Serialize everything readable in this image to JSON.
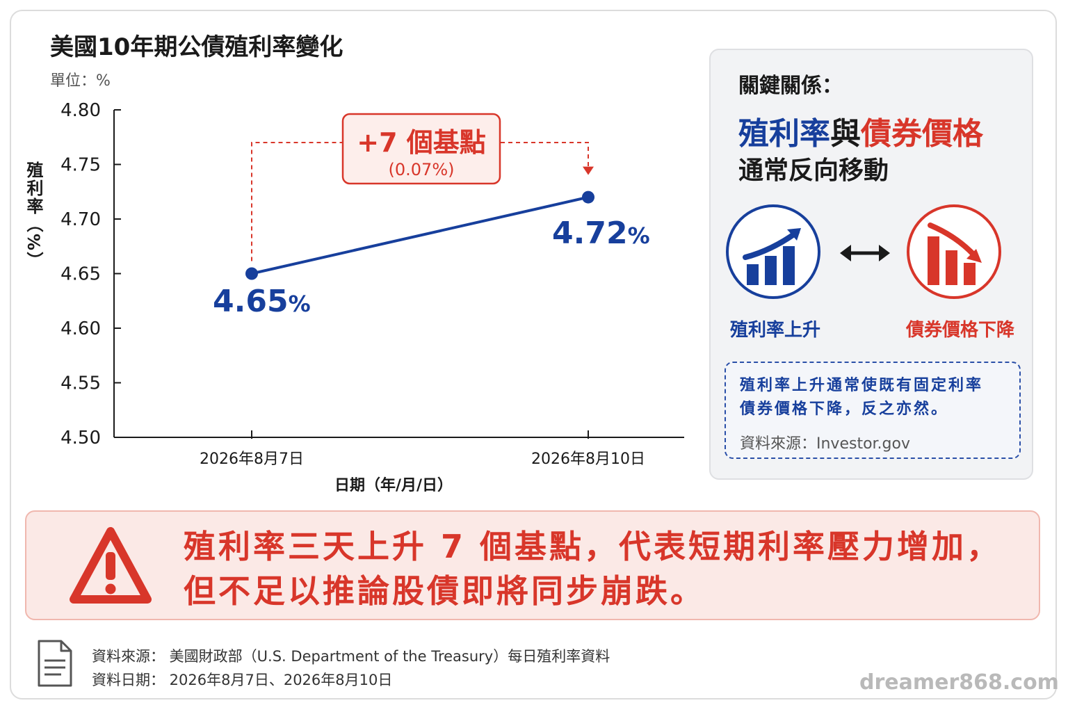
{
  "title": "美國10年期公債殖利率變化",
  "unit_label": "單位：%",
  "chart_data": {
    "type": "line",
    "categories": [
      "2026年8月7日",
      "2026年8月10日"
    ],
    "series": [
      {
        "values": [
          4.65,
          4.72
        ]
      }
    ],
    "ylim": [
      4.5,
      4.8
    ],
    "yticks": [
      "4.80",
      "4.75",
      "4.70",
      "4.65",
      "4.60",
      "4.55",
      "4.50"
    ],
    "xlabel": "日期（年/月/日）",
    "ylabel": "殖利率（%）",
    "point_labels": [
      "4.65",
      "4.72"
    ],
    "point_label_unit": "%",
    "annotation": {
      "main": "+7 個基點",
      "sub": "(0.07%)"
    },
    "colors": {
      "line": "#173f9c",
      "annotation": "#d8362a",
      "axis": "#1a1a1a"
    }
  },
  "panel": {
    "heading": "關鍵關係：",
    "line1_a": "殖利率",
    "line1_b": "與",
    "line1_c": "債券價格",
    "line2": "通常反向移動",
    "icon_up": "bar-chart-up-icon",
    "icon_down": "bar-chart-down-icon",
    "caption_up": "殖利率上升",
    "caption_down": "債券價格下降",
    "note_line1": "殖利率上升通常使既有固定利率",
    "note_line2": "債券價格下降，反之亦然。",
    "note_source": "資料來源：Investor.gov"
  },
  "alert": {
    "line1": "殖利率三天上升 7 個基點，代表短期利率壓力增加，",
    "line2": "但不足以推論股債即將同步崩跌。"
  },
  "footer": {
    "source": "資料來源：  美國財政部（U.S. Department of the Treasury）每日殖利率資料",
    "date": "資料日期：  2026年8月7日、2026年8月10日"
  },
  "watermark": "dreamer868.com"
}
